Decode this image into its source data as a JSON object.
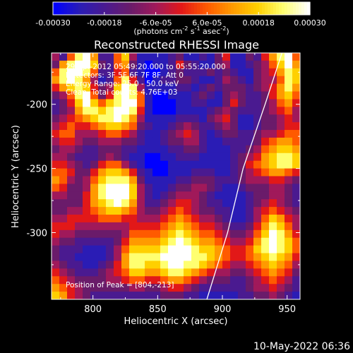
{
  "colorbar": {
    "tick_labels": [
      "-0.00030",
      "-0.00018",
      "-6.0e-05",
      "6.0e-05",
      "0.00018",
      "0.00030"
    ],
    "unit_main": "(photons cm",
    "unit_exp1": "-2",
    "unit_mid": " s",
    "unit_exp2": "-1",
    "unit_tail": " asec",
    "unit_exp3": "-2",
    "unit_close": ")",
    "range": [
      -0.0003,
      0.0003
    ],
    "palette": [
      "#0000ff",
      "#2a1cb5",
      "#4a1a90",
      "#6a1b6a",
      "#a0195a",
      "#e21818",
      "#ff5a00",
      "#ff9a00",
      "#ffd000",
      "#ffff70",
      "#ffffff"
    ]
  },
  "annotations": {
    "time": "29-Apr-2012 05:49:20.000 to 05:55:20.000",
    "detectors": "Detectors: 3F 5F 6F 7F 8F, Att 0",
    "energy": "Energy Range: 25.0 - 50.0 keV",
    "clean": "Clean.  Total counts: 4.76E+03",
    "peak": "Position of Peak = [804,-213]"
  },
  "footer": {
    "timestamp": "10-May-2022 06:36"
  },
  "chart_data": {
    "type": "heatmap",
    "title": "Reconstructed RHESSI Image",
    "xlabel": "Heliocentric X (arcsec)",
    "ylabel": "Heliocentric Y (arcsec)",
    "xlim": [
      768,
      960
    ],
    "ylim": [
      -352,
      -160
    ],
    "x_ticks": [
      800,
      850,
      900,
      950
    ],
    "y_ticks": [
      -200,
      -250,
      -300
    ],
    "x_tick_labels": [
      "800",
      "850",
      "900",
      "950"
    ],
    "y_tick_labels": [
      "-200",
      "-250",
      "-300"
    ],
    "limb": [
      [
        946,
        -160
      ],
      [
        933,
        -200
      ],
      [
        916,
        -250
      ],
      [
        904,
        -300
      ],
      [
        888,
        -352
      ]
    ],
    "peak": [
      804,
      -213
    ],
    "grid": [
      [
        4,
        2,
        6,
        9,
        10,
        7,
        2,
        2,
        6,
        8,
        4,
        1,
        1,
        1,
        1,
        2,
        3,
        1,
        1,
        2,
        1,
        3,
        5,
        1,
        1,
        3,
        2,
        5,
        7,
        9,
        10,
        6
      ],
      [
        3,
        7,
        9,
        10,
        10,
        8,
        3,
        2,
        6,
        7,
        3,
        1,
        0,
        1,
        1,
        2,
        5,
        3,
        2,
        1,
        1,
        3,
        4,
        1,
        1,
        2,
        3,
        4,
        6,
        8,
        10,
        7
      ],
      [
        6,
        9,
        10,
        10,
        9,
        6,
        2,
        2,
        5,
        6,
        2,
        1,
        0,
        0,
        1,
        2,
        3,
        2,
        2,
        2,
        3,
        2,
        3,
        2,
        1,
        1,
        3,
        4,
        5,
        7,
        9,
        8
      ],
      [
        7,
        9,
        10,
        9,
        7,
        4,
        1,
        2,
        6,
        9,
        5,
        2,
        0,
        1,
        2,
        2,
        3,
        3,
        2,
        1,
        1,
        2,
        4,
        3,
        2,
        1,
        3,
        4,
        4,
        6,
        9,
        8
      ],
      [
        5,
        7,
        8,
        9,
        8,
        5,
        3,
        4,
        8,
        10,
        9,
        4,
        1,
        1,
        1,
        1,
        2,
        2,
        1,
        2,
        3,
        2,
        3,
        3,
        3,
        2,
        3,
        4,
        5,
        7,
        9,
        7
      ],
      [
        3,
        4,
        6,
        9,
        10,
        6,
        3,
        5,
        9,
        10,
        9,
        6,
        1,
        0,
        0,
        1,
        1,
        1,
        2,
        3,
        2,
        1,
        3,
        4,
        3,
        2,
        2,
        3,
        5,
        7,
        8,
        6
      ],
      [
        2,
        3,
        5,
        8,
        10,
        8,
        6,
        8,
        9,
        10,
        10,
        6,
        1,
        0,
        0,
        0,
        1,
        1,
        2,
        2,
        1,
        1,
        3,
        5,
        3,
        2,
        2,
        3,
        4,
        6,
        7,
        5
      ],
      [
        2,
        3,
        4,
        7,
        9,
        9,
        8,
        9,
        10,
        10,
        9,
        5,
        1,
        0,
        0,
        0,
        1,
        1,
        1,
        1,
        2,
        3,
        4,
        3,
        2,
        2,
        2,
        3,
        4,
        5,
        6,
        4
      ],
      [
        3,
        4,
        5,
        6,
        7,
        8,
        9,
        9,
        10,
        9,
        7,
        4,
        1,
        1,
        1,
        1,
        2,
        2,
        2,
        1,
        3,
        4,
        5,
        3,
        1,
        1,
        2,
        3,
        3,
        4,
        5,
        4
      ],
      [
        4,
        5,
        6,
        5,
        5,
        6,
        7,
        8,
        8,
        7,
        6,
        3,
        2,
        1,
        1,
        2,
        3,
        4,
        3,
        2,
        2,
        3,
        4,
        3,
        1,
        1,
        2,
        3,
        3,
        4,
        5,
        5
      ],
      [
        5,
        6,
        6,
        4,
        4,
        4,
        5,
        6,
        6,
        5,
        4,
        2,
        1,
        1,
        2,
        3,
        4,
        5,
        4,
        2,
        1,
        2,
        3,
        3,
        2,
        2,
        3,
        4,
        4,
        5,
        6,
        6
      ],
      [
        4,
        5,
        5,
        4,
        3,
        3,
        4,
        4,
        4,
        3,
        3,
        2,
        1,
        1,
        2,
        3,
        3,
        4,
        4,
        2,
        1,
        1,
        2,
        2,
        2,
        2,
        3,
        5,
        6,
        7,
        7,
        6
      ],
      [
        3,
        4,
        4,
        3,
        2,
        2,
        3,
        3,
        3,
        2,
        2,
        1,
        1,
        1,
        1,
        2,
        2,
        3,
        3,
        2,
        1,
        1,
        1,
        2,
        2,
        3,
        4,
        6,
        7,
        8,
        8,
        7
      ],
      [
        4,
        4,
        3,
        2,
        2,
        2,
        3,
        4,
        3,
        2,
        1,
        1,
        0,
        0,
        1,
        1,
        2,
        2,
        2,
        1,
        1,
        1,
        1,
        2,
        3,
        4,
        5,
        7,
        8,
        9,
        9,
        8
      ],
      [
        5,
        5,
        4,
        3,
        2,
        3,
        5,
        6,
        6,
        4,
        2,
        1,
        0,
        0,
        0,
        1,
        1,
        1,
        1,
        1,
        1,
        1,
        1,
        2,
        3,
        5,
        6,
        7,
        8,
        9,
        9,
        8
      ],
      [
        6,
        6,
        5,
        3,
        3,
        5,
        7,
        8,
        8,
        7,
        5,
        2,
        1,
        0,
        0,
        1,
        1,
        1,
        2,
        2,
        2,
        1,
        1,
        2,
        3,
        4,
        5,
        6,
        7,
        7,
        6,
        5
      ],
      [
        7,
        6,
        4,
        3,
        4,
        6,
        8,
        9,
        9,
        9,
        7,
        3,
        1,
        1,
        1,
        1,
        2,
        2,
        3,
        3,
        3,
        2,
        2,
        2,
        3,
        4,
        4,
        4,
        5,
        5,
        4,
        3
      ],
      [
        6,
        5,
        3,
        3,
        4,
        7,
        9,
        10,
        10,
        10,
        8,
        4,
        2,
        1,
        1,
        2,
        3,
        3,
        4,
        4,
        3,
        2,
        1,
        1,
        2,
        3,
        3,
        3,
        4,
        4,
        3,
        2
      ],
      [
        4,
        4,
        3,
        3,
        5,
        7,
        9,
        10,
        10,
        10,
        8,
        4,
        2,
        1,
        2,
        3,
        4,
        4,
        4,
        3,
        2,
        1,
        1,
        1,
        1,
        2,
        3,
        3,
        4,
        4,
        3,
        2
      ],
      [
        3,
        3,
        3,
        3,
        5,
        7,
        8,
        9,
        10,
        9,
        7,
        4,
        2,
        2,
        3,
        4,
        5,
        5,
        4,
        3,
        2,
        2,
        1,
        1,
        1,
        2,
        3,
        4,
        5,
        4,
        3,
        2
      ],
      [
        3,
        3,
        4,
        4,
        5,
        6,
        7,
        8,
        8,
        7,
        6,
        4,
        3,
        3,
        4,
        5,
        6,
        5,
        4,
        3,
        3,
        2,
        2,
        1,
        1,
        2,
        4,
        5,
        6,
        5,
        4,
        3
      ],
      [
        4,
        4,
        5,
        5,
        5,
        5,
        6,
        6,
        6,
        5,
        5,
        4,
        4,
        4,
        5,
        6,
        7,
        6,
        5,
        4,
        4,
        3,
        2,
        1,
        1,
        2,
        4,
        6,
        8,
        7,
        5,
        4
      ],
      [
        5,
        5,
        5,
        4,
        4,
        4,
        4,
        4,
        4,
        4,
        5,
        5,
        5,
        5,
        6,
        7,
        8,
        7,
        6,
        5,
        5,
        4,
        3,
        2,
        2,
        3,
        5,
        7,
        9,
        8,
        6,
        4
      ],
      [
        5,
        4,
        4,
        3,
        3,
        3,
        3,
        3,
        3,
        4,
        6,
        6,
        6,
        6,
        7,
        8,
        9,
        8,
        7,
        6,
        6,
        5,
        4,
        3,
        3,
        4,
        6,
        8,
        10,
        9,
        7,
        5
      ],
      [
        4,
        3,
        3,
        2,
        2,
        2,
        2,
        2,
        3,
        5,
        7,
        7,
        7,
        7,
        8,
        9,
        10,
        9,
        8,
        7,
        7,
        6,
        5,
        4,
        4,
        5,
        7,
        9,
        10,
        9,
        8,
        6
      ],
      [
        3,
        2,
        2,
        2,
        1,
        1,
        1,
        2,
        4,
        6,
        8,
        8,
        8,
        8,
        9,
        10,
        10,
        10,
        9,
        8,
        8,
        7,
        6,
        5,
        5,
        6,
        8,
        9,
        10,
        9,
        8,
        6
      ],
      [
        3,
        2,
        2,
        1,
        1,
        1,
        1,
        2,
        4,
        7,
        9,
        9,
        9,
        9,
        10,
        10,
        10,
        10,
        9,
        9,
        8,
        7,
        6,
        5,
        5,
        6,
        7,
        8,
        9,
        8,
        7,
        5
      ],
      [
        4,
        3,
        2,
        2,
        1,
        1,
        2,
        3,
        5,
        7,
        9,
        9,
        8,
        8,
        9,
        10,
        10,
        9,
        9,
        8,
        7,
        6,
        5,
        4,
        4,
        5,
        6,
        7,
        8,
        7,
        6,
        4
      ],
      [
        5,
        4,
        3,
        2,
        2,
        2,
        3,
        4,
        5,
        6,
        8,
        8,
        7,
        7,
        8,
        9,
        9,
        8,
        7,
        6,
        5,
        4,
        4,
        3,
        3,
        4,
        5,
        6,
        7,
        6,
        5,
        3
      ],
      [
        6,
        5,
        4,
        3,
        3,
        3,
        3,
        4,
        4,
        5,
        6,
        6,
        5,
        5,
        6,
        7,
        7,
        6,
        5,
        4,
        3,
        3,
        3,
        2,
        2,
        3,
        4,
        5,
        6,
        5,
        4,
        2
      ],
      [
        7,
        6,
        5,
        4,
        3,
        3,
        3,
        3,
        3,
        3,
        4,
        4,
        3,
        3,
        4,
        5,
        5,
        4,
        3,
        2,
        2,
        2,
        2,
        2,
        2,
        3,
        4,
        4,
        5,
        4,
        3,
        2
      ],
      [
        8,
        7,
        5,
        4,
        3,
        2,
        2,
        2,
        2,
        2,
        2,
        2,
        2,
        2,
        3,
        3,
        3,
        2,
        2,
        1,
        1,
        1,
        1,
        1,
        2,
        2,
        3,
        3,
        4,
        3,
        2,
        1
      ]
    ]
  }
}
